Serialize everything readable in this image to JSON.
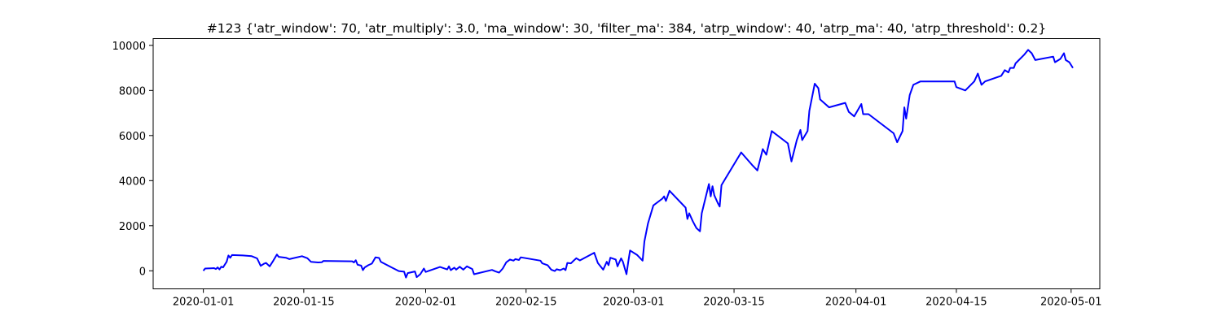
{
  "chart_data": {
    "type": "line",
    "title": "#123 {'atr_window': 70, 'atr_multiply': 3.0, 'ma_window': 30, 'filter_ma': 384, 'atrp_window': 40, 'atrp_ma': 40, 'atrp_threshold': 0.2}",
    "xlabel": "",
    "ylabel": "",
    "xlim": [
      "2019-12-25",
      "2020-05-05"
    ],
    "ylim": [
      -800,
      10300
    ],
    "x_ticks": [
      {
        "date": "2020-01-01",
        "label": "2020-01-01"
      },
      {
        "date": "2020-01-15",
        "label": "2020-01-15"
      },
      {
        "date": "2020-02-01",
        "label": "2020-02-01"
      },
      {
        "date": "2020-02-15",
        "label": "2020-02-15"
      },
      {
        "date": "2020-03-01",
        "label": "2020-03-01"
      },
      {
        "date": "2020-03-15",
        "label": "2020-03-15"
      },
      {
        "date": "2020-04-01",
        "label": "2020-04-01"
      },
      {
        "date": "2020-04-15",
        "label": "2020-04-15"
      },
      {
        "date": "2020-05-01",
        "label": "2020-05-01"
      }
    ],
    "y_ticks": [
      0,
      2000,
      4000,
      6000,
      8000,
      10000
    ],
    "grid": false,
    "legend": "none",
    "series": [
      {
        "color": "#0000ff",
        "points": [
          [
            "2020-01-01 00:00",
            0
          ],
          [
            "2020-01-01 06:00",
            100
          ],
          [
            "2020-01-02 00:00",
            110
          ],
          [
            "2020-01-02 12:00",
            120
          ],
          [
            "2020-01-02 18:00",
            80
          ],
          [
            "2020-01-03 00:00",
            150
          ],
          [
            "2020-01-03 06:00",
            60
          ],
          [
            "2020-01-03 12:00",
            180
          ],
          [
            "2020-01-03 18:00",
            150
          ],
          [
            "2020-01-04 06:00",
            400
          ],
          [
            "2020-01-04 12:00",
            680
          ],
          [
            "2020-01-04 18:00",
            580
          ],
          [
            "2020-01-05 00:00",
            700
          ],
          [
            "2020-01-06 12:00",
            680
          ],
          [
            "2020-01-07 18:00",
            650
          ],
          [
            "2020-01-08 12:00",
            550
          ],
          [
            "2020-01-09 00:00",
            220
          ],
          [
            "2020-01-09 12:00",
            320
          ],
          [
            "2020-01-09 18:00",
            350
          ],
          [
            "2020-01-10 06:00",
            200
          ],
          [
            "2020-01-10 18:00",
            450
          ],
          [
            "2020-01-11 06:00",
            720
          ],
          [
            "2020-01-11 12:00",
            620
          ],
          [
            "2020-01-12 12:00",
            580
          ],
          [
            "2020-01-13 00:00",
            520
          ],
          [
            "2020-01-14 18:00",
            650
          ],
          [
            "2020-01-15 12:00",
            560
          ],
          [
            "2020-01-16 00:00",
            400
          ],
          [
            "2020-01-17 00:00",
            370
          ],
          [
            "2020-01-17 12:00",
            380
          ],
          [
            "2020-01-17 18:00",
            440
          ],
          [
            "2020-01-21 18:00",
            420
          ],
          [
            "2020-01-22 00:00",
            370
          ],
          [
            "2020-01-22 06:00",
            470
          ],
          [
            "2020-01-22 12:00",
            270
          ],
          [
            "2020-01-23 00:00",
            230
          ],
          [
            "2020-01-23 06:00",
            30
          ],
          [
            "2020-01-23 12:00",
            150
          ],
          [
            "2020-01-24 00:00",
            250
          ],
          [
            "2020-01-24 12:00",
            320
          ],
          [
            "2020-01-25 00:00",
            600
          ],
          [
            "2020-01-25 12:00",
            570
          ],
          [
            "2020-01-25 18:00",
            400
          ],
          [
            "2020-01-27 06:00",
            150
          ],
          [
            "2020-01-28 06:00",
            -10
          ],
          [
            "2020-01-29 00:00",
            -40
          ],
          [
            "2020-01-29 06:00",
            -300
          ],
          [
            "2020-01-29 12:00",
            -100
          ],
          [
            "2020-01-30 12:00",
            -30
          ],
          [
            "2020-01-30 18:00",
            -280
          ],
          [
            "2020-01-31 06:00",
            -150
          ],
          [
            "2020-01-31 18:00",
            100
          ],
          [
            "2020-02-01 00:00",
            -50
          ],
          [
            "2020-02-03 00:00",
            170
          ],
          [
            "2020-02-04 00:00",
            60
          ],
          [
            "2020-02-04 06:00",
            200
          ],
          [
            "2020-02-04 12:00",
            30
          ],
          [
            "2020-02-05 00:00",
            140
          ],
          [
            "2020-02-05 06:00",
            50
          ],
          [
            "2020-02-05 18:00",
            180
          ],
          [
            "2020-02-06 06:00",
            50
          ],
          [
            "2020-02-06 18:00",
            200
          ],
          [
            "2020-02-07 12:00",
            80
          ],
          [
            "2020-02-07 18:00",
            -150
          ],
          [
            "2020-02-10 06:00",
            40
          ],
          [
            "2020-02-10 18:00",
            -30
          ],
          [
            "2020-02-11 06:00",
            -80
          ],
          [
            "2020-02-11 18:00",
            100
          ],
          [
            "2020-02-12 06:00",
            380
          ],
          [
            "2020-02-12 18:00",
            500
          ],
          [
            "2020-02-13 06:00",
            450
          ],
          [
            "2020-02-13 12:00",
            520
          ],
          [
            "2020-02-14 00:00",
            480
          ],
          [
            "2020-02-14 06:00",
            600
          ],
          [
            "2020-02-16 06:00",
            490
          ],
          [
            "2020-02-17 00:00",
            450
          ],
          [
            "2020-02-17 06:00",
            330
          ],
          [
            "2020-02-18 00:00",
            250
          ],
          [
            "2020-02-18 12:00",
            50
          ],
          [
            "2020-02-19 00:00",
            -10
          ],
          [
            "2020-02-19 06:00",
            70
          ],
          [
            "2020-02-19 18:00",
            30
          ],
          [
            "2020-02-20 06:00",
            100
          ],
          [
            "2020-02-20 12:00",
            30
          ],
          [
            "2020-02-20 18:00",
            350
          ],
          [
            "2020-02-21 06:00",
            330
          ],
          [
            "2020-02-21 12:00",
            410
          ],
          [
            "2020-02-22 00:00",
            560
          ],
          [
            "2020-02-22 12:00",
            460
          ],
          [
            "2020-02-24 12:00",
            800
          ],
          [
            "2020-02-25 00:00",
            350
          ],
          [
            "2020-02-25 18:00",
            50
          ],
          [
            "2020-02-26 06:00",
            400
          ],
          [
            "2020-02-26 12:00",
            250
          ],
          [
            "2020-02-26 18:00",
            580
          ],
          [
            "2020-02-27 12:00",
            500
          ],
          [
            "2020-02-27 18:00",
            200
          ],
          [
            "2020-02-28 00:00",
            380
          ],
          [
            "2020-02-28 06:00",
            550
          ],
          [
            "2020-02-28 12:00",
            400
          ],
          [
            "2020-02-29 00:00",
            -150
          ],
          [
            "2020-02-29 06:00",
            400
          ],
          [
            "2020-02-29 12:00",
            900
          ],
          [
            "2020-03-01 12:00",
            700
          ],
          [
            "2020-03-02 06:00",
            450
          ],
          [
            "2020-03-02 12:00",
            1300
          ],
          [
            "2020-03-03 00:00",
            2100
          ],
          [
            "2020-03-03 18:00",
            2900
          ],
          [
            "2020-03-05 00:00",
            3200
          ],
          [
            "2020-03-05 06:00",
            3300
          ],
          [
            "2020-03-05 12:00",
            3100
          ],
          [
            "2020-03-06 00:00",
            3550
          ],
          [
            "2020-03-08 06:00",
            2800
          ],
          [
            "2020-03-08 12:00",
            2300
          ],
          [
            "2020-03-08 18:00",
            2550
          ],
          [
            "2020-03-09 06:00",
            2200
          ],
          [
            "2020-03-09 18:00",
            1900
          ],
          [
            "2020-03-10 06:00",
            1750
          ],
          [
            "2020-03-10 12:00",
            2550
          ],
          [
            "2020-03-11 12:00",
            3850
          ],
          [
            "2020-03-11 18:00",
            3300
          ],
          [
            "2020-03-12 00:00",
            3750
          ],
          [
            "2020-03-12 06:00",
            3350
          ],
          [
            "2020-03-12 18:00",
            3000
          ],
          [
            "2020-03-13 00:00",
            2850
          ],
          [
            "2020-03-13 06:00",
            3800
          ],
          [
            "2020-03-16 00:00",
            5250
          ],
          [
            "2020-03-17 12:00",
            4700
          ],
          [
            "2020-03-18 06:00",
            4450
          ],
          [
            "2020-03-19 00:00",
            5400
          ],
          [
            "2020-03-19 12:00",
            5150
          ],
          [
            "2020-03-20 06:00",
            6200
          ],
          [
            "2020-03-22 12:00",
            5650
          ],
          [
            "2020-03-23 00:00",
            4850
          ],
          [
            "2020-03-23 18:00",
            5800
          ],
          [
            "2020-03-24 06:00",
            6250
          ],
          [
            "2020-03-24 12:00",
            5800
          ],
          [
            "2020-03-25 06:00",
            6200
          ],
          [
            "2020-03-25 12:00",
            7100
          ],
          [
            "2020-03-26 06:00",
            8300
          ],
          [
            "2020-03-26 18:00",
            8100
          ],
          [
            "2020-03-27 00:00",
            7600
          ],
          [
            "2020-03-28 06:00",
            7250
          ],
          [
            "2020-03-30 12:00",
            7450
          ],
          [
            "2020-03-31 00:00",
            7050
          ],
          [
            "2020-03-31 18:00",
            6850
          ],
          [
            "2020-04-01 18:00",
            7400
          ],
          [
            "2020-04-02 00:00",
            6950
          ],
          [
            "2020-04-02 18:00",
            6950
          ],
          [
            "2020-04-06 06:00",
            6100
          ],
          [
            "2020-04-06 18:00",
            5700
          ],
          [
            "2020-04-07 12:00",
            6200
          ],
          [
            "2020-04-07 18:00",
            7250
          ],
          [
            "2020-04-08 00:00",
            6750
          ],
          [
            "2020-04-08 12:00",
            7800
          ],
          [
            "2020-04-09 00:00",
            8250
          ],
          [
            "2020-04-10 00:00",
            8400
          ],
          [
            "2020-04-14 18:00",
            8400
          ],
          [
            "2020-04-15 00:00",
            8150
          ],
          [
            "2020-04-16 06:00",
            8000
          ],
          [
            "2020-04-17 12:00",
            8400
          ],
          [
            "2020-04-18 00:00",
            8750
          ],
          [
            "2020-04-18 12:00",
            8250
          ],
          [
            "2020-04-19 00:00",
            8400
          ],
          [
            "2020-04-21 06:00",
            8650
          ],
          [
            "2020-04-21 18:00",
            8900
          ],
          [
            "2020-04-22 06:00",
            8800
          ],
          [
            "2020-04-22 12:00",
            9000
          ],
          [
            "2020-04-23 00:00",
            9000
          ],
          [
            "2020-04-23 06:00",
            9200
          ],
          [
            "2020-04-24 12:00",
            9600
          ],
          [
            "2020-04-25 00:00",
            9800
          ],
          [
            "2020-04-25 12:00",
            9650
          ],
          [
            "2020-04-26 00:00",
            9350
          ],
          [
            "2020-04-28 12:00",
            9500
          ],
          [
            "2020-04-28 18:00",
            9250
          ],
          [
            "2020-04-29 12:00",
            9400
          ],
          [
            "2020-04-30 00:00",
            9650
          ],
          [
            "2020-04-30 06:00",
            9350
          ],
          [
            "2020-04-30 18:00",
            9250
          ],
          [
            "2020-05-01 06:00",
            9000
          ]
        ]
      }
    ]
  }
}
